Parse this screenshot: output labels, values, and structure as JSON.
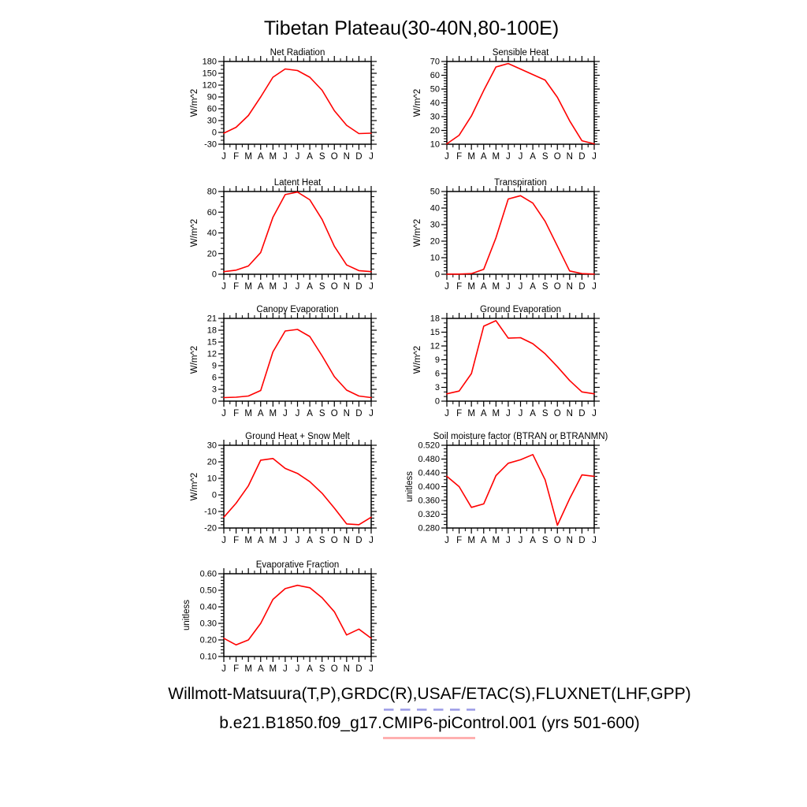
{
  "figure": {
    "title": "Tibetan Plateau(30-40N,80-100E)"
  },
  "footer": {
    "line1": "Willmott-Matsuura(T,P),GRDC(R),USAF/ETAC(S),FLUXNET(LHF,GPP)",
    "line2": "b.e21.B1850.f09_g17.CMIP6-piControl.001 (yrs 501-600)",
    "obs_legend_color": "#9a9ae6",
    "obs_legend_style": "dashed",
    "model_legend_color": "#ffb0b0",
    "model_legend_style": "solid"
  },
  "chart_data": {
    "type": "line",
    "x_categories": [
      "J",
      "F",
      "M",
      "A",
      "M",
      "J",
      "J",
      "A",
      "S",
      "O",
      "N",
      "D",
      "J"
    ],
    "line_color": "#ff0000",
    "grid": false,
    "legend_position": "none",
    "charts": [
      {
        "title": "Net Radiation",
        "ylabel": "W/m^2",
        "ylim": [
          -30,
          180
        ],
        "ytick_step": 30,
        "decimals": 0,
        "minors": 2,
        "values": [
          -2,
          13,
          43,
          90,
          140,
          161,
          157,
          140,
          107,
          55,
          18,
          -3,
          -2
        ]
      },
      {
        "title": "Sensible Heat",
        "ylabel": "W/m^2",
        "ylim": [
          10,
          70
        ],
        "ytick_step": 10,
        "decimals": 0,
        "minors": 4,
        "values": [
          10.3,
          16.5,
          30.5,
          49,
          66,
          68.5,
          64.5,
          60.5,
          56.5,
          44,
          27,
          12.5,
          10.3
        ]
      },
      {
        "title": "Latent Heat",
        "ylabel": "W/m^2",
        "ylim": [
          0,
          80
        ],
        "ytick_step": 20,
        "decimals": 0,
        "minors": 3,
        "values": [
          2.5,
          4,
          8,
          21,
          55,
          77,
          79.5,
          72,
          53,
          27,
          9,
          3.5,
          2.5
        ]
      },
      {
        "title": "Transpiration",
        "ylabel": "W/m^2",
        "ylim": [
          0,
          50
        ],
        "ytick_step": 10,
        "decimals": 0,
        "minors": 4,
        "values": [
          0.1,
          0.1,
          0.4,
          3,
          22,
          45.5,
          47.5,
          43,
          32,
          17,
          2,
          0.4,
          0.1
        ]
      },
      {
        "title": "Canopy Evaporation",
        "ylabel": "W/m^2",
        "ylim": [
          0,
          21
        ],
        "ytick_step": 3,
        "decimals": 0,
        "minors": 2,
        "values": [
          0.9,
          1,
          1.3,
          2.7,
          12.5,
          17.8,
          18.2,
          16.4,
          11.5,
          6.2,
          2.8,
          1.3,
          0.9
        ]
      },
      {
        "title": "Ground Evaporation",
        "ylabel": "W/m^2",
        "ylim": [
          0,
          18
        ],
        "ytick_step": 3,
        "decimals": 0,
        "minors": 2,
        "values": [
          1.6,
          2.2,
          6,
          16.3,
          17.5,
          13.7,
          13.8,
          12.5,
          10.3,
          7.5,
          4.5,
          2,
          1.6
        ]
      },
      {
        "title": "Ground Heat + Snow Melt",
        "ylabel": "W/m^2",
        "ylim": [
          -20,
          30
        ],
        "ytick_step": 10,
        "decimals": 0,
        "minors": 4,
        "values": [
          -13.5,
          -5,
          5.5,
          21,
          22,
          16,
          13,
          8,
          1,
          -8,
          -17.5,
          -18,
          -13.5
        ]
      },
      {
        "title": "Soil moisture factor (BTRAN or BTRANMN)",
        "ylabel": "unitless",
        "ylim": [
          0.28,
          0.52
        ],
        "ytick_step": 0.04,
        "decimals": 3,
        "minors": 3,
        "values": [
          0.43,
          0.4,
          0.34,
          0.35,
          0.432,
          0.468,
          0.478,
          0.493,
          0.42,
          0.288,
          0.365,
          0.434,
          0.43
        ]
      },
      {
        "title": "Evaporative Fraction",
        "ylabel": "unitless",
        "ylim": [
          0.1,
          0.6
        ],
        "ytick_step": 0.1,
        "decimals": 2,
        "minors": 4,
        "values": [
          0.21,
          0.17,
          0.2,
          0.3,
          0.445,
          0.51,
          0.53,
          0.515,
          0.455,
          0.37,
          0.23,
          0.265,
          0.21
        ]
      }
    ]
  }
}
